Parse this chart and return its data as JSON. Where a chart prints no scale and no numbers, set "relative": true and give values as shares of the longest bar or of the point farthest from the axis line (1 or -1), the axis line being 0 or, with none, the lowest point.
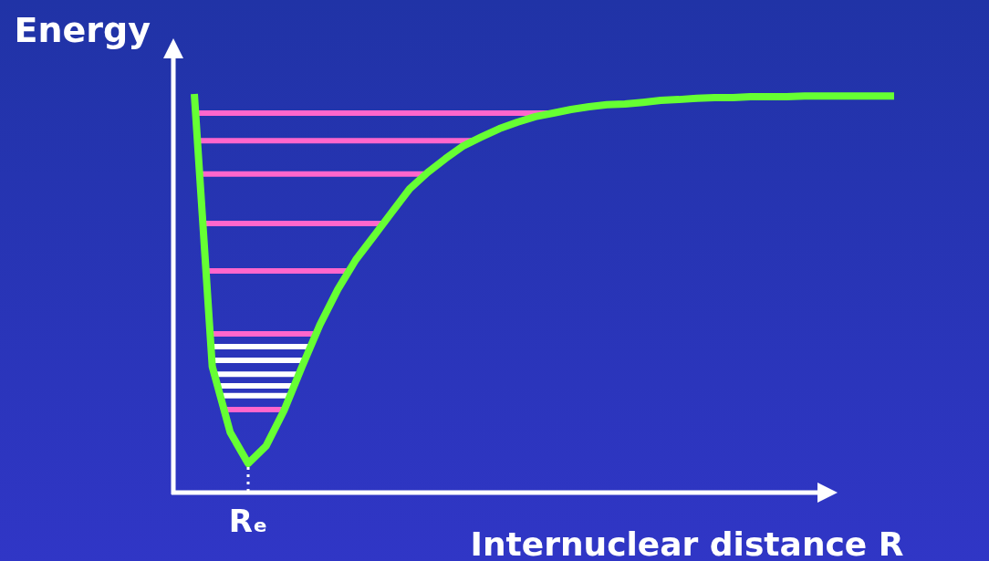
{
  "chart_data": {
    "type": "line",
    "xlabel": "Internuclear distance R",
    "ylabel": "Energy",
    "relative": true,
    "marker": "none",
    "annotations": [
      {
        "text": "Rₑ"
      }
    ],
    "categories": [
      null,
      null,
      null,
      null,
      null,
      null,
      null,
      null,
      null,
      null,
      null,
      null,
      null,
      null,
      null,
      null,
      null,
      null,
      null,
      null,
      null,
      null,
      null,
      null,
      null,
      null,
      null,
      null,
      null,
      null,
      null,
      null,
      null,
      null,
      null,
      null,
      null,
      null,
      null,
      null
    ],
    "series": [
      {
        "color": "#66ff33",
        "values": [
          1.0,
          0.316,
          0.151,
          0.073,
          0.117,
          0.206,
          0.316,
          0.421,
          0.51,
          0.584,
          0.643,
          0.703,
          0.762,
          0.803,
          0.838,
          0.87,
          0.892,
          0.913,
          0.929,
          0.943,
          0.952,
          0.961,
          0.968,
          0.973,
          0.975,
          0.979,
          0.984,
          0.986,
          0.989,
          0.991,
          0.991,
          0.993,
          0.993,
          0.993,
          0.995,
          0.995,
          0.995,
          0.995,
          0.995,
          0.995
        ]
      }
    ],
    "ref_lines": [
      {
        "axis": "y",
        "value": 0.952,
        "color": "#ff66cc"
      },
      {
        "axis": "y",
        "value": 0.883,
        "color": "#ff66cc"
      },
      {
        "axis": "y",
        "value": 0.799,
        "color": "#ff66cc"
      },
      {
        "axis": "y",
        "value": 0.675,
        "color": "#ff66cc"
      },
      {
        "axis": "y",
        "value": 0.556,
        "color": "#ff66cc"
      },
      {
        "axis": "y",
        "value": 0.398,
        "color": "#ff66cc"
      },
      {
        "axis": "y",
        "value": 0.366,
        "color": "#ffffff"
      },
      {
        "axis": "y",
        "value": 0.332,
        "color": "#ffffff"
      },
      {
        "axis": "y",
        "value": 0.297,
        "color": "#ffffff"
      },
      {
        "axis": "y",
        "value": 0.268,
        "color": "#ffffff"
      },
      {
        "axis": "y",
        "value": 0.243,
        "color": "#ffffff"
      },
      {
        "axis": "y",
        "value": 0.208,
        "color": "#ff66cc"
      }
    ]
  }
}
